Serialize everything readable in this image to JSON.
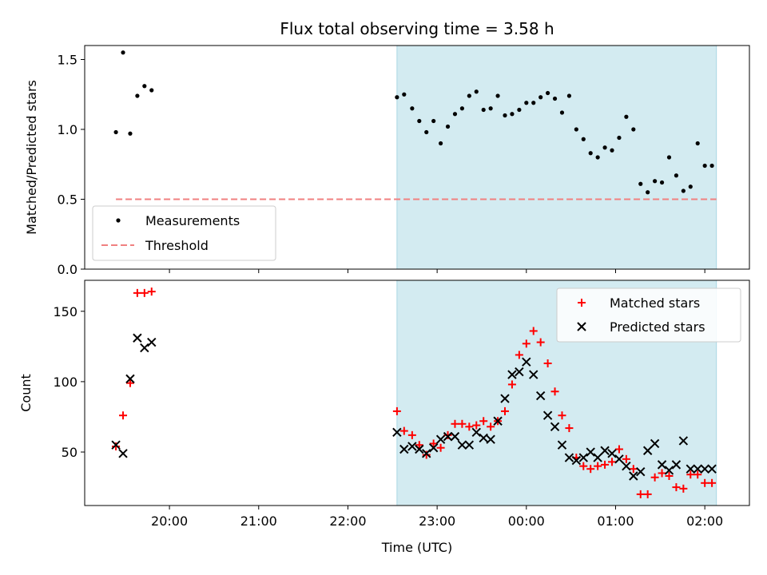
{
  "chart_data": [
    {
      "type": "scatter",
      "title": "Flux total observing time = 3.58 h",
      "xlabel": "",
      "ylabel": "Matched/Predicted stars",
      "ylim": [
        0,
        1.6
      ],
      "yticks": [
        0.0,
        0.5,
        1.0,
        1.5
      ],
      "ytick_labels": [
        "0.0",
        "0.5",
        "1.0",
        "1.5"
      ],
      "shaded_region": {
        "start_hour": 22.55,
        "end_hour": 26.13,
        "color": "#d3ebf1"
      },
      "threshold": {
        "name": "Threshold",
        "value": 0.5,
        "x_start_hour": 19.4,
        "x_end_hour": 26.13,
        "color": "#f08080"
      },
      "legend": {
        "placement": "lower-left",
        "entries": [
          "Measurements",
          "Threshold"
        ]
      },
      "series": [
        {
          "name": "Measurements",
          "marker": "dot",
          "color": "#000000",
          "x_hours": [
            19.4,
            19.48,
            19.56,
            19.64,
            19.72,
            19.8,
            22.55,
            22.63,
            22.72,
            22.8,
            22.88,
            22.96,
            23.04,
            23.12,
            23.2,
            23.28,
            23.36,
            23.44,
            23.52,
            23.6,
            23.68,
            23.76,
            23.84,
            23.92,
            24.0,
            24.08,
            24.16,
            24.24,
            24.32,
            24.4,
            24.48,
            24.56,
            24.64,
            24.72,
            24.8,
            24.88,
            24.96,
            25.04,
            25.12,
            25.2,
            25.28,
            25.36,
            25.44,
            25.52,
            25.6,
            25.68,
            25.76,
            25.84,
            25.92,
            26.0,
            26.08
          ],
          "values": [
            0.98,
            1.55,
            0.97,
            1.24,
            1.31,
            1.28,
            1.23,
            1.25,
            1.15,
            1.06,
            0.98,
            1.06,
            0.9,
            1.02,
            1.11,
            1.15,
            1.24,
            1.27,
            1.14,
            1.15,
            1.24,
            1.1,
            1.11,
            1.14,
            1.19,
            1.19,
            1.23,
            1.26,
            1.22,
            1.12,
            1.24,
            1.0,
            0.93,
            0.83,
            0.8,
            0.87,
            0.85,
            0.94,
            1.09,
            1.0,
            0.61,
            0.55,
            0.63,
            0.62,
            0.8,
            0.67,
            0.56,
            0.59,
            0.9,
            0.74,
            0.74
          ]
        }
      ]
    },
    {
      "type": "scatter",
      "title": "",
      "xlabel": "Time (UTC)",
      "ylabel": "Count",
      "ylim": [
        12,
        172
      ],
      "yticks": [
        50,
        100,
        150
      ],
      "ytick_labels": [
        "50",
        "100",
        "150"
      ],
      "xlim_hours": [
        19.05,
        26.5
      ],
      "xticks_hours": [
        20,
        21,
        22,
        23,
        24,
        25,
        26
      ],
      "xtick_labels": [
        "20:00",
        "21:00",
        "22:00",
        "23:00",
        "00:00",
        "01:00",
        "02:00"
      ],
      "shaded_region": {
        "start_hour": 22.55,
        "end_hour": 26.13,
        "color": "#d3ebf1"
      },
      "legend": {
        "placement": "upper-right",
        "entries": [
          "Matched stars",
          "Predicted stars"
        ]
      },
      "series": [
        {
          "name": "Matched stars",
          "marker": "plus",
          "color": "#ff0000",
          "x_hours": [
            19.4,
            19.48,
            19.56,
            19.64,
            19.72,
            19.8,
            22.55,
            22.63,
            22.72,
            22.8,
            22.88,
            22.96,
            23.04,
            23.12,
            23.2,
            23.28,
            23.36,
            23.44,
            23.52,
            23.6,
            23.68,
            23.76,
            23.84,
            23.92,
            24.0,
            24.08,
            24.16,
            24.24,
            24.32,
            24.4,
            24.48,
            24.56,
            24.64,
            24.72,
            24.8,
            24.88,
            24.96,
            25.04,
            25.12,
            25.2,
            25.28,
            25.36,
            25.44,
            25.52,
            25.6,
            25.68,
            25.76,
            25.84,
            25.92,
            26.0,
            26.08
          ],
          "values": [
            54,
            76,
            99,
            163,
            163,
            164,
            79,
            65,
            62,
            55,
            48,
            56,
            53,
            62,
            70,
            70,
            68,
            69,
            72,
            68,
            72,
            79,
            98,
            119,
            127,
            136,
            128,
            113,
            93,
            76,
            67,
            46,
            40,
            38,
            40,
            41,
            43,
            52,
            45,
            38,
            20,
            20,
            32,
            35,
            33,
            25,
            24,
            34,
            34,
            28,
            28
          ]
        },
        {
          "name": "Predicted stars",
          "marker": "x",
          "color": "#000000",
          "x_hours": [
            19.4,
            19.48,
            19.56,
            19.64,
            19.72,
            19.8,
            22.55,
            22.63,
            22.72,
            22.8,
            22.88,
            22.96,
            23.04,
            23.12,
            23.2,
            23.28,
            23.36,
            23.44,
            23.52,
            23.6,
            23.68,
            23.76,
            23.84,
            23.92,
            24.0,
            24.08,
            24.16,
            24.24,
            24.32,
            24.4,
            24.48,
            24.56,
            24.64,
            24.72,
            24.8,
            24.88,
            24.96,
            25.04,
            25.12,
            25.2,
            25.28,
            25.36,
            25.44,
            25.52,
            25.6,
            25.68,
            25.76,
            25.84,
            25.92,
            26.0,
            26.08
          ],
          "values": [
            55,
            49,
            102,
            131,
            124,
            128,
            64,
            52,
            54,
            52,
            49,
            53,
            59,
            61,
            61,
            55,
            55,
            64,
            60,
            59,
            72,
            88,
            105,
            107,
            114,
            105,
            90,
            76,
            68,
            55,
            46,
            44,
            46,
            50,
            46,
            51,
            49,
            45,
            40,
            33,
            36,
            51,
            56,
            41,
            37,
            41,
            58,
            38,
            38,
            38,
            38
          ]
        }
      ]
    }
  ]
}
